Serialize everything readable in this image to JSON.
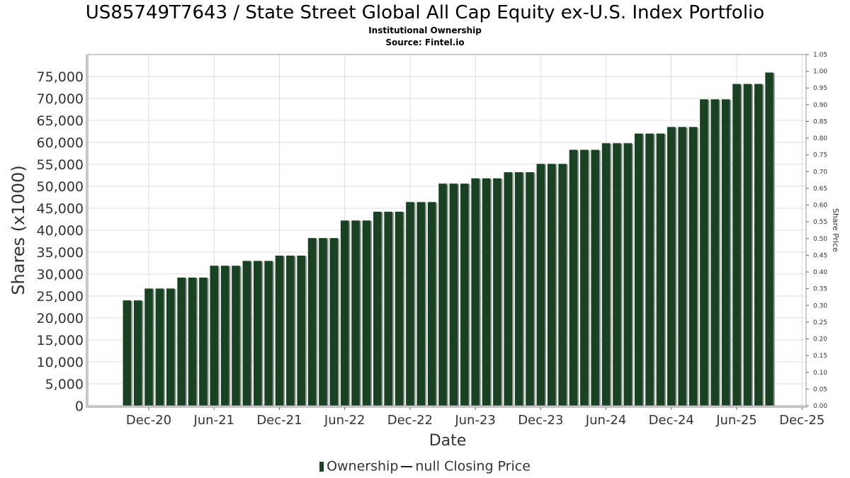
{
  "title": "US85749T7643 / State Street Global All Cap Equity ex-U.S. Index Portfolio",
  "subtitle": "Institutional Ownership",
  "source": "Source: Fintel.io",
  "legend": {
    "ownership": "Ownership",
    "price": "null Closing Price"
  },
  "colors": {
    "bar": "#1a4123",
    "bar_shadow": "#8c9a8e",
    "grid": "#dddddd",
    "plot_border": "#999999"
  },
  "chart_data": {
    "type": "bar",
    "xlabel": "Date",
    "ylabel": "Shares (x1000)",
    "y2label": "Share Price",
    "ylim": [
      0,
      80000
    ],
    "y2lim": [
      0,
      1.05
    ],
    "grid": true,
    "legend_position": "bottom",
    "x_ticks": [
      "Dec-20",
      "Jun-21",
      "Dec-21",
      "Jun-22",
      "Dec-22",
      "Jun-23",
      "Dec-23",
      "Jun-24",
      "Dec-24",
      "Jun-25",
      "Dec-25"
    ],
    "y_ticks": [
      "0",
      "5,000",
      "10,000",
      "15,000",
      "20,000",
      "25,000",
      "30,000",
      "35,000",
      "40,000",
      "45,000",
      "50,000",
      "55,000",
      "60,000",
      "65,000",
      "70,000",
      "75,000"
    ],
    "y2_ticks": [
      "0.00",
      "0.05",
      "0.10",
      "0.15",
      "0.20",
      "0.25",
      "0.30",
      "0.35",
      "0.40",
      "0.45",
      "0.50",
      "0.55",
      "0.60",
      "0.65",
      "0.70",
      "0.75",
      "0.80",
      "0.85",
      "0.90",
      "0.95",
      "1.00",
      "1.05"
    ],
    "series": [
      {
        "name": "Ownership",
        "points": [
          {
            "date": "2020-10-01",
            "value": 24000
          },
          {
            "date": "2020-11-01",
            "value": 24000
          },
          {
            "date": "2020-12-01",
            "value": 26700
          },
          {
            "date": "2021-01-01",
            "value": 26700
          },
          {
            "date": "2021-02-01",
            "value": 26700
          },
          {
            "date": "2021-03-01",
            "value": 29200
          },
          {
            "date": "2021-04-01",
            "value": 29200
          },
          {
            "date": "2021-05-01",
            "value": 29200
          },
          {
            "date": "2021-06-01",
            "value": 31900
          },
          {
            "date": "2021-07-01",
            "value": 31900
          },
          {
            "date": "2021-08-01",
            "value": 31900
          },
          {
            "date": "2021-09-01",
            "value": 33000
          },
          {
            "date": "2021-10-01",
            "value": 33000
          },
          {
            "date": "2021-11-01",
            "value": 33000
          },
          {
            "date": "2021-12-01",
            "value": 34200
          },
          {
            "date": "2022-01-01",
            "value": 34200
          },
          {
            "date": "2022-02-01",
            "value": 34200
          },
          {
            "date": "2022-03-01",
            "value": 38200
          },
          {
            "date": "2022-04-01",
            "value": 38200
          },
          {
            "date": "2022-05-01",
            "value": 38200
          },
          {
            "date": "2022-06-01",
            "value": 42200
          },
          {
            "date": "2022-07-01",
            "value": 42200
          },
          {
            "date": "2022-08-01",
            "value": 42200
          },
          {
            "date": "2022-09-01",
            "value": 44200
          },
          {
            "date": "2022-10-01",
            "value": 44200
          },
          {
            "date": "2022-11-01",
            "value": 44200
          },
          {
            "date": "2022-12-01",
            "value": 46400
          },
          {
            "date": "2023-01-01",
            "value": 46400
          },
          {
            "date": "2023-02-01",
            "value": 46400
          },
          {
            "date": "2023-03-01",
            "value": 50600
          },
          {
            "date": "2023-04-01",
            "value": 50600
          },
          {
            "date": "2023-05-01",
            "value": 50600
          },
          {
            "date": "2023-06-01",
            "value": 51800
          },
          {
            "date": "2023-07-01",
            "value": 51800
          },
          {
            "date": "2023-08-01",
            "value": 51800
          },
          {
            "date": "2023-09-01",
            "value": 53200
          },
          {
            "date": "2023-10-01",
            "value": 53200
          },
          {
            "date": "2023-11-01",
            "value": 53200
          },
          {
            "date": "2023-12-01",
            "value": 55100
          },
          {
            "date": "2024-01-01",
            "value": 55100
          },
          {
            "date": "2024-02-01",
            "value": 55100
          },
          {
            "date": "2024-03-01",
            "value": 58300
          },
          {
            "date": "2024-04-01",
            "value": 58300
          },
          {
            "date": "2024-05-01",
            "value": 58300
          },
          {
            "date": "2024-06-01",
            "value": 59800
          },
          {
            "date": "2024-07-01",
            "value": 59800
          },
          {
            "date": "2024-08-01",
            "value": 59800
          },
          {
            "date": "2024-09-01",
            "value": 62000
          },
          {
            "date": "2024-10-01",
            "value": 62000
          },
          {
            "date": "2024-11-01",
            "value": 62000
          },
          {
            "date": "2024-12-01",
            "value": 63500
          },
          {
            "date": "2025-01-01",
            "value": 63500
          },
          {
            "date": "2025-02-01",
            "value": 63500
          },
          {
            "date": "2025-03-01",
            "value": 69800
          },
          {
            "date": "2025-04-01",
            "value": 69800
          },
          {
            "date": "2025-05-01",
            "value": 69800
          },
          {
            "date": "2025-06-01",
            "value": 73300
          },
          {
            "date": "2025-07-01",
            "value": 73300
          },
          {
            "date": "2025-08-01",
            "value": 73300
          },
          {
            "date": "2025-09-01",
            "value": 75900
          }
        ]
      }
    ]
  }
}
